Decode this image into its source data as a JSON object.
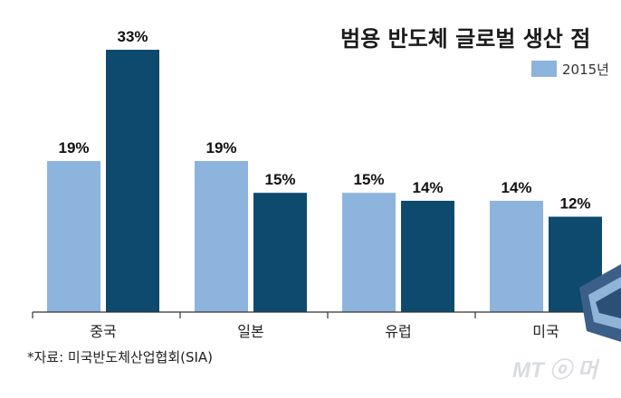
{
  "chart_data": {
    "type": "bar",
    "title": "범용 반도체 글로벌 생산 점",
    "categories": [
      "중국",
      "일본",
      "유럽",
      "미국"
    ],
    "series": [
      {
        "name": "2015년",
        "values": [
          19,
          19,
          15,
          14
        ],
        "color": "#8db4dc"
      },
      {
        "values": [
          33,
          15,
          14,
          12
        ],
        "color": "#0e4a6e"
      }
    ],
    "value_labels": [
      [
        "19%",
        "19%",
        "15%",
        "14%"
      ],
      [
        "33%",
        "15%",
        "14%",
        "12%"
      ]
    ],
    "ylim": [
      0,
      35
    ],
    "grid": false,
    "legend_position": "top-right"
  },
  "source_note": "*자료: 미국반도체산업협회(SIA)",
  "watermark": "MT ⓞ 머"
}
